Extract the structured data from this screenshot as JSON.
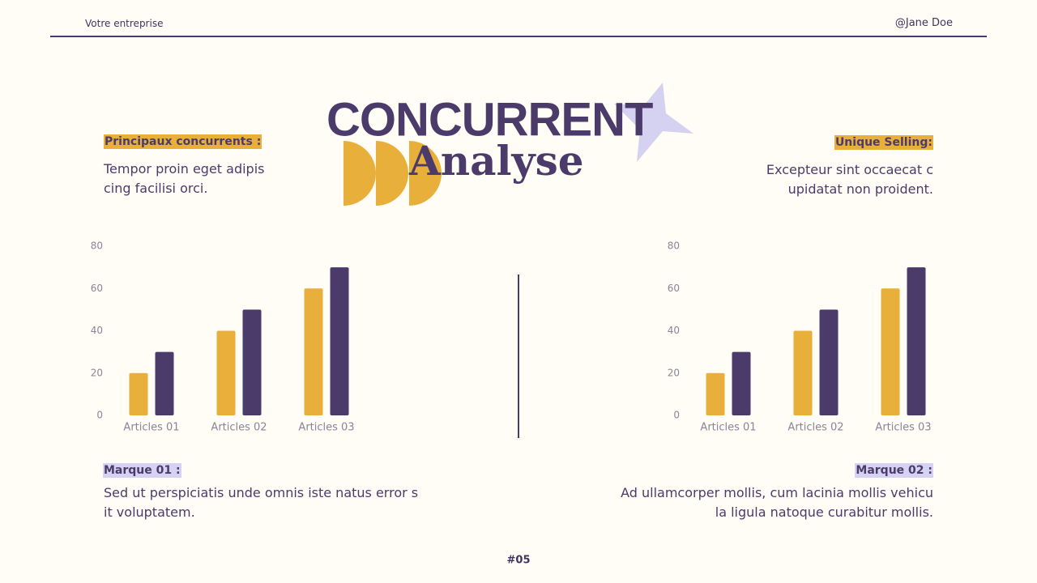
{
  "header": {
    "company": "Votre entreprise",
    "author": "@Jane Doe"
  },
  "title": {
    "main": "CONCURRENT",
    "sub": "Analyse"
  },
  "left_block": {
    "label": "Principaux concurrents :",
    "lines": [
      "Tempor proin eget adipis",
      "cing facilisi orci."
    ]
  },
  "right_block": {
    "label": "Unique Selling:",
    "lines": [
      "Excepteur sint occaecat c",
      "upidatat non proident."
    ]
  },
  "brand1": {
    "label": "Marque 01 :",
    "lines": [
      "Sed ut perspiciatis unde omnis iste natus error s",
      "it voluptatem."
    ]
  },
  "brand2": {
    "label": "Marque 02 :",
    "lines": [
      "Ad ullamcorper mollis, cum lacinia mollis vehicu",
      "la ligula natoque curabitur mollis."
    ]
  },
  "footer": {
    "page": "#05"
  },
  "chart_data": [
    {
      "type": "bar",
      "categories": [
        "Articles 01",
        "Articles 02",
        "Articles 03"
      ],
      "series": [
        {
          "color": "#e8b03a",
          "values": [
            20,
            40,
            60
          ]
        },
        {
          "color": "#4b3b6b",
          "values": [
            30,
            50,
            70
          ]
        }
      ],
      "ylim": [
        0,
        80
      ],
      "yticks": [
        0,
        20,
        40,
        60,
        80
      ]
    },
    {
      "type": "bar",
      "categories": [
        "Articles 01",
        "Articles 02",
        "Articles 03"
      ],
      "series": [
        {
          "color": "#e8b03a",
          "values": [
            20,
            40,
            60
          ]
        },
        {
          "color": "#4b3b6b",
          "values": [
            30,
            50,
            70
          ]
        }
      ],
      "ylim": [
        0,
        80
      ],
      "yticks": [
        0,
        20,
        40,
        60,
        80
      ]
    }
  ]
}
